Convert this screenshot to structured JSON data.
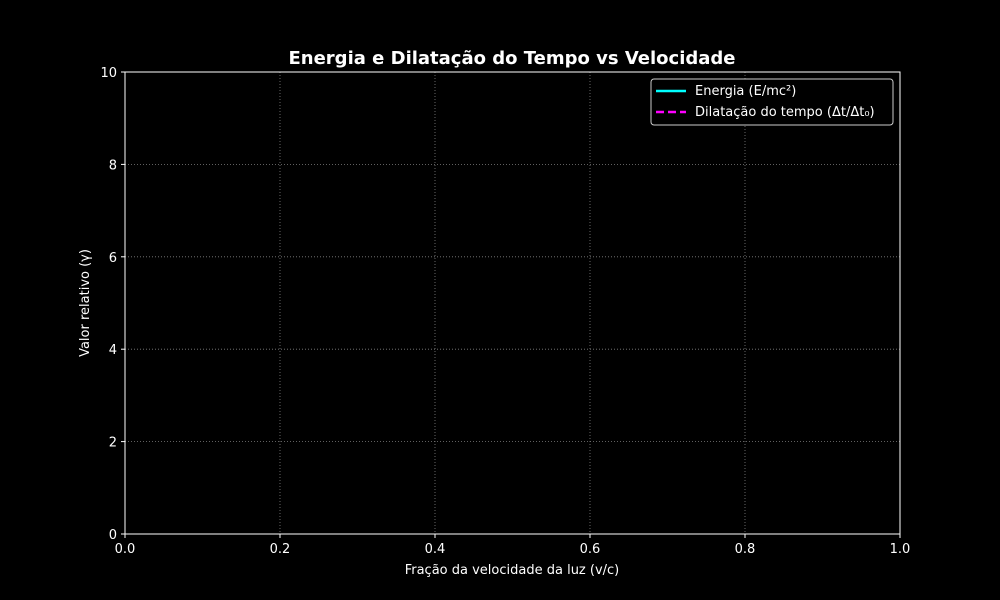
{
  "chart_data": {
    "type": "line",
    "title": "Energia e Dilatação do Tempo vs Velocidade",
    "xlabel": "Fração da velocidade da luz (v/c)",
    "ylabel": "Valor relativo (γ)",
    "xlim": [
      0,
      1
    ],
    "ylim": [
      0,
      10
    ],
    "xticks": [
      "0.0",
      "0.2",
      "0.4",
      "0.6",
      "0.8",
      "1.0"
    ],
    "yticks": [
      "0",
      "2",
      "4",
      "6",
      "8",
      "10"
    ],
    "grid": true,
    "legend_position": "top-right",
    "series": [
      {
        "name": "Energia (E/mc²)",
        "color": "#00ffff",
        "style": "solid",
        "x": [],
        "y": []
      },
      {
        "name": "Dilatação do tempo (Δt/Δt₀)",
        "color": "#ff00ff",
        "style": "dashed",
        "x": [],
        "y": []
      }
    ]
  },
  "colors": {
    "background": "#000000",
    "text": "#ffffff",
    "grid": "#808080"
  }
}
